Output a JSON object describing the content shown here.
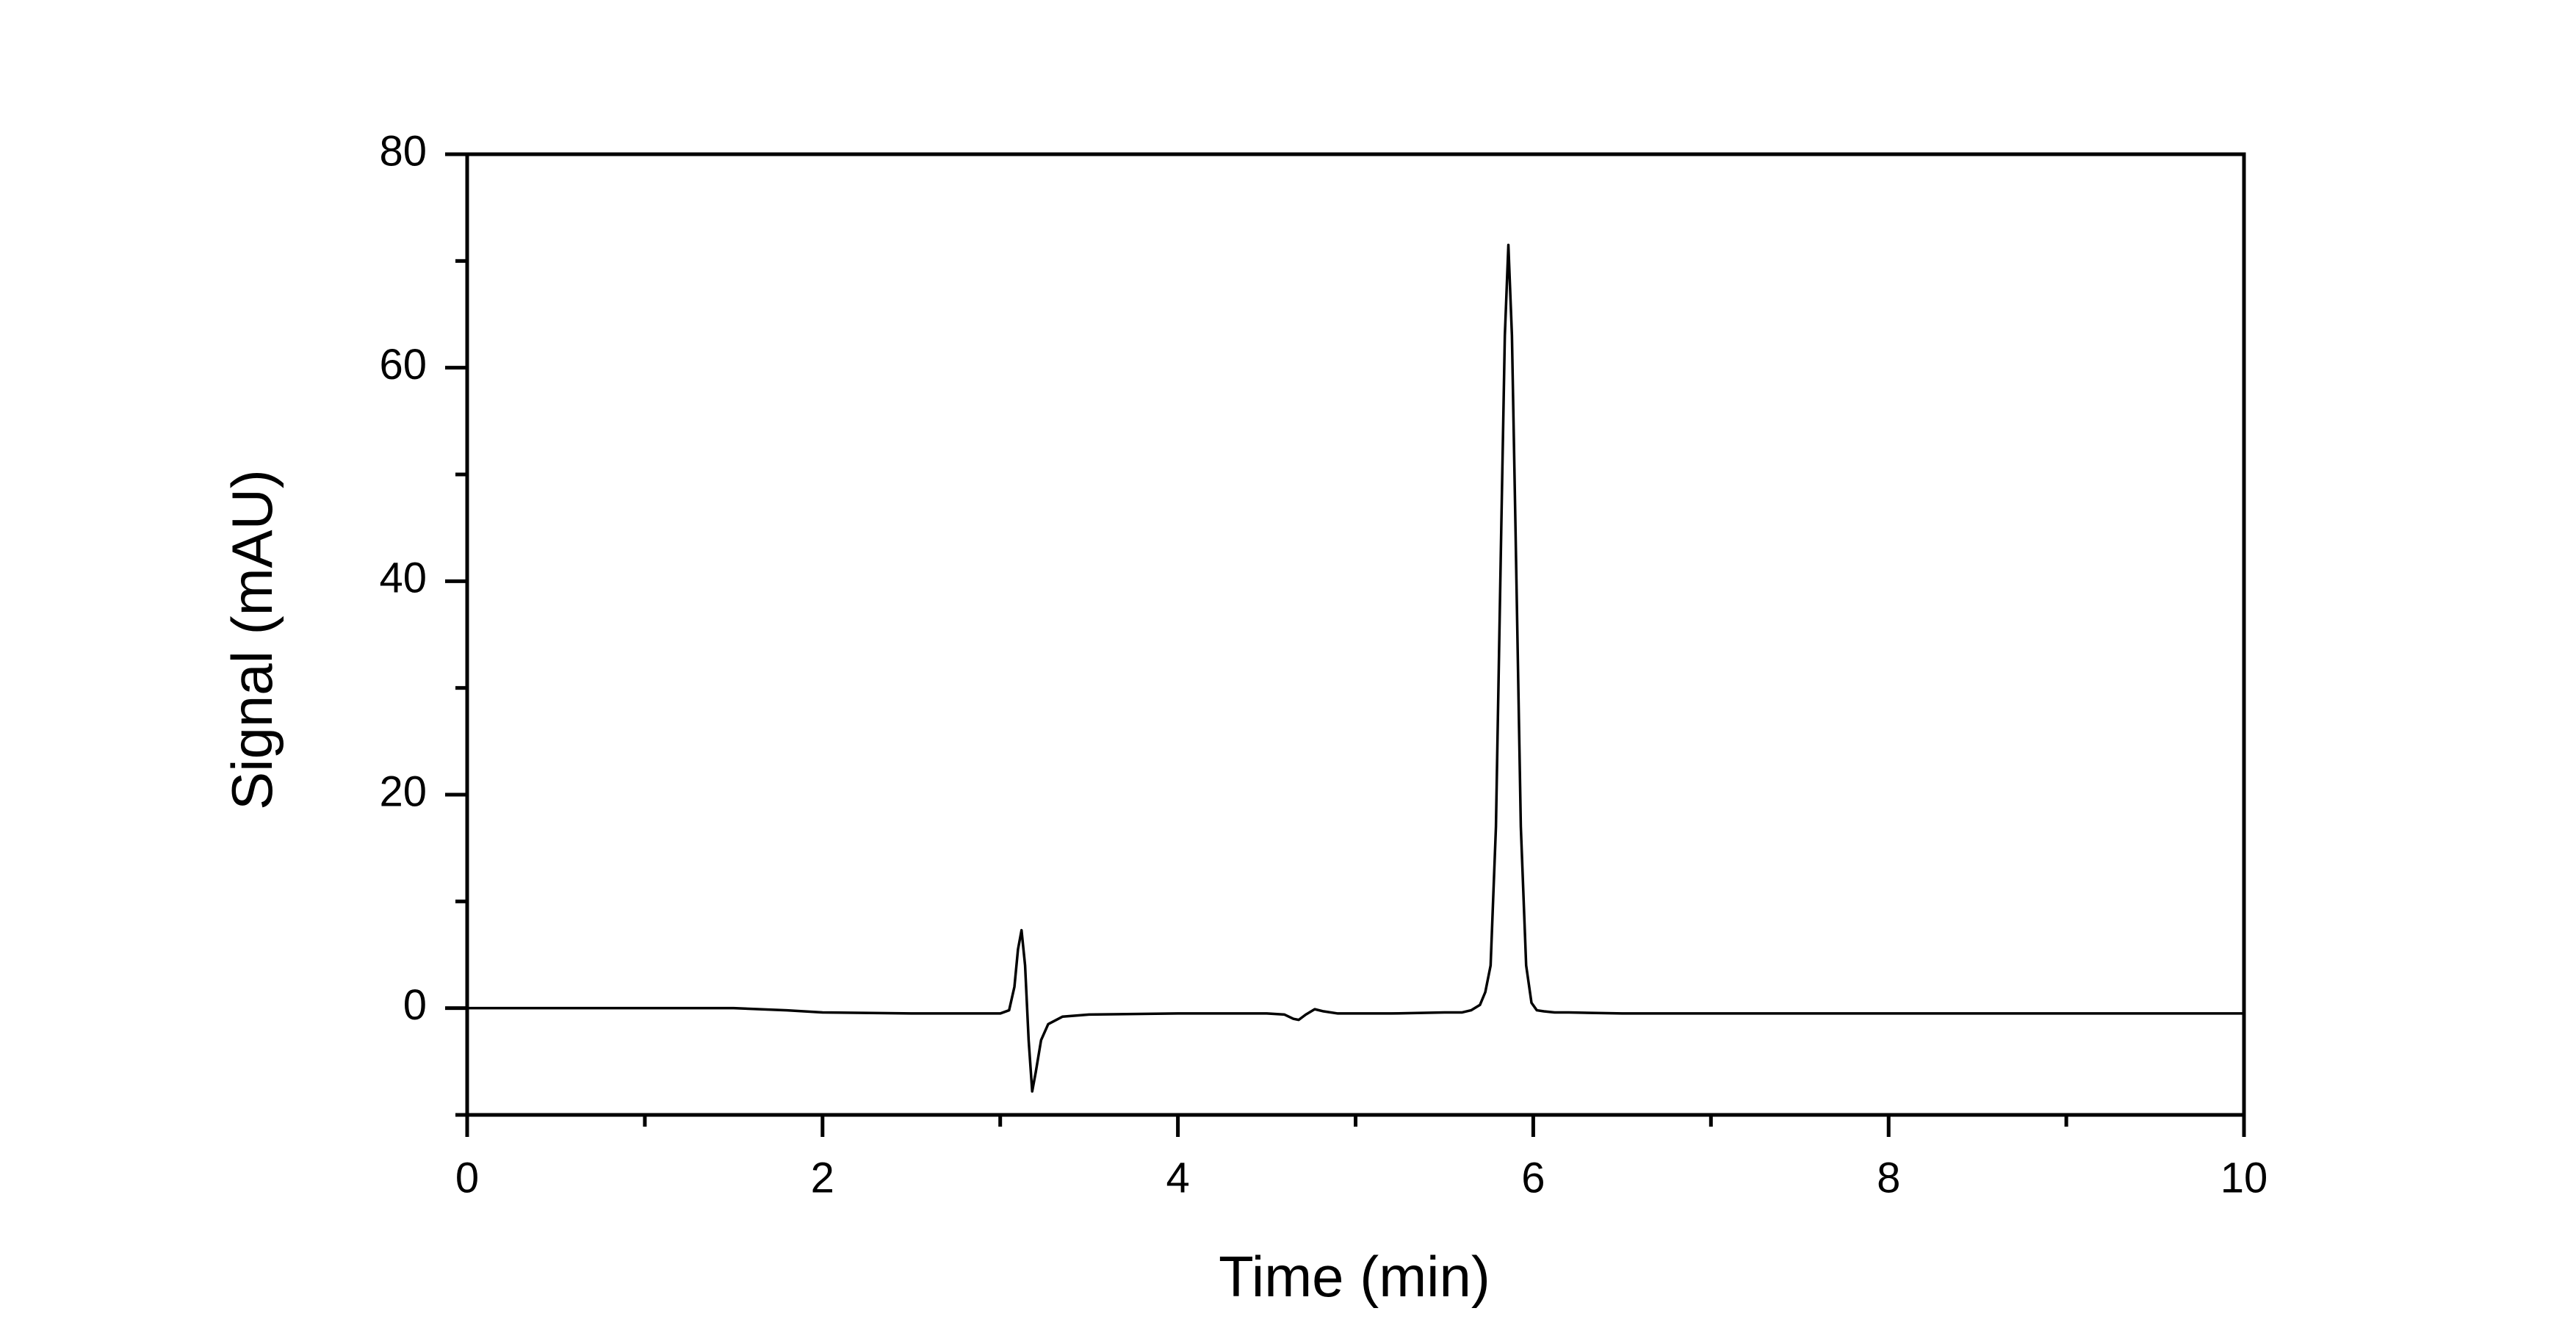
{
  "chart_data": {
    "type": "line",
    "x_label": "Time (min)",
    "y_label": "Signal (mAU)",
    "x": [
      0,
      0.5,
      1,
      1.5,
      1.8,
      2,
      2.5,
      3,
      3.05,
      3.08,
      3.1,
      3.12,
      3.14,
      3.16,
      3.18,
      3.2,
      3.23,
      3.27,
      3.35,
      3.5,
      4,
      4.5,
      4.6,
      4.65,
      4.68,
      4.72,
      4.77,
      4.82,
      4.9,
      5.2,
      5.5,
      5.6,
      5.65,
      5.7,
      5.73,
      5.76,
      5.79,
      5.82,
      5.84,
      5.86,
      5.88,
      5.9,
      5.93,
      5.96,
      5.99,
      6.02,
      6.06,
      6.12,
      6.2,
      6.5,
      7,
      8,
      9,
      10
    ],
    "series": [
      {
        "color": "#000000",
        "values": [
          0,
          0,
          0,
          0,
          -0.2,
          -0.4,
          -0.5,
          -0.5,
          -0.2,
          2,
          5.5,
          7.3,
          4,
          -3,
          -7.8,
          -6,
          -3,
          -1.5,
          -0.8,
          -0.6,
          -0.5,
          -0.5,
          -0.6,
          -1,
          -1.1,
          -0.6,
          -0.1,
          -0.3,
          -0.5,
          -0.5,
          -0.4,
          -0.4,
          -0.2,
          0.3,
          1.5,
          4,
          17,
          45,
          63,
          71.5,
          63,
          45,
          17,
          4,
          0.5,
          -0.2,
          -0.3,
          -0.4,
          -0.4,
          -0.5,
          -0.5,
          -0.5,
          -0.5,
          -0.5
        ]
      }
    ],
    "xlim": [
      0,
      10
    ],
    "xticks": [
      0,
      2,
      4,
      6,
      8,
      10
    ],
    "ylim": [
      -10,
      80
    ],
    "yticks": [
      0,
      20,
      40,
      60,
      80
    ],
    "grid": false
  }
}
